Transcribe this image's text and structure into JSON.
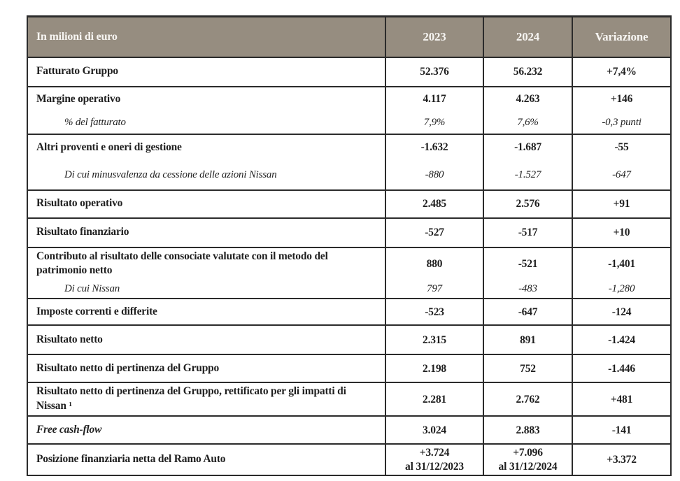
{
  "colors": {
    "header_bg": "#968d80",
    "border": "#2b2b2b",
    "text": "#1f1f1f",
    "header_text": "#f7f5f2",
    "page_bg": "#ffffff"
  },
  "table": {
    "unit_label": "In milioni di euro",
    "columns": [
      "2023",
      "2024",
      "Variazione"
    ],
    "rows": [
      {
        "label": "Fatturato Gruppo",
        "y2023": "52.376",
        "y2024": "56.232",
        "variazione": "+7,4%"
      },
      {
        "label": "Margine operativo",
        "y2023": "4.117",
        "y2024": "4.263",
        "variazione": "+146"
      },
      {
        "label": "% del fatturato",
        "y2023": "7,9%",
        "y2024": "7,6%",
        "variazione": "-0,3 punti"
      },
      {
        "label": "Altri proventi e oneri di gestione",
        "y2023": "-1.632",
        "y2024": "-1.687",
        "variazione": "-55"
      },
      {
        "label": "Di cui minusvalenza da cessione delle azioni Nissan",
        "y2023": "-880",
        "y2024": "-1.527",
        "variazione": "-647"
      },
      {
        "label": "Risultato operativo",
        "y2023": "2.485",
        "y2024": "2.576",
        "variazione": "+91"
      },
      {
        "label": "Risultato finanziario",
        "y2023": "-527",
        "y2024": "-517",
        "variazione": "+10"
      },
      {
        "label": "Contributo al risultato delle consociate valutate con il metodo del patrimonio netto",
        "y2023": "880",
        "y2024": "-521",
        "variazione": "-1,401"
      },
      {
        "label": "Di cui Nissan",
        "y2023": "797",
        "y2024": "-483",
        "variazione": "-1,280"
      },
      {
        "label": "Imposte correnti e differite",
        "y2023": "-523",
        "y2024": "-647",
        "variazione": "-124"
      },
      {
        "label": "Risultato netto",
        "y2023": "2.315",
        "y2024": "891",
        "variazione": "-1.424"
      },
      {
        "label": "Risultato netto di pertinenza del Gruppo",
        "y2023": "2.198",
        "y2024": "752",
        "variazione": "-1.446"
      },
      {
        "label": "Risultato netto di pertinenza del Gruppo, rettificato per gli impatti di Nissan ¹",
        "y2023": "2.281",
        "y2024": "2.762",
        "variazione": "+481"
      },
      {
        "label": "Free cash-flow",
        "y2023": "3.024",
        "y2024": "2.883",
        "variazione": "-141"
      },
      {
        "label": "Posizione finanziaria netta del Ramo Auto",
        "y2023": "+3.724\nal 31/12/2023",
        "y2024": "+7.096\nal 31/12/2024",
        "variazione": "+3.372"
      }
    ]
  }
}
